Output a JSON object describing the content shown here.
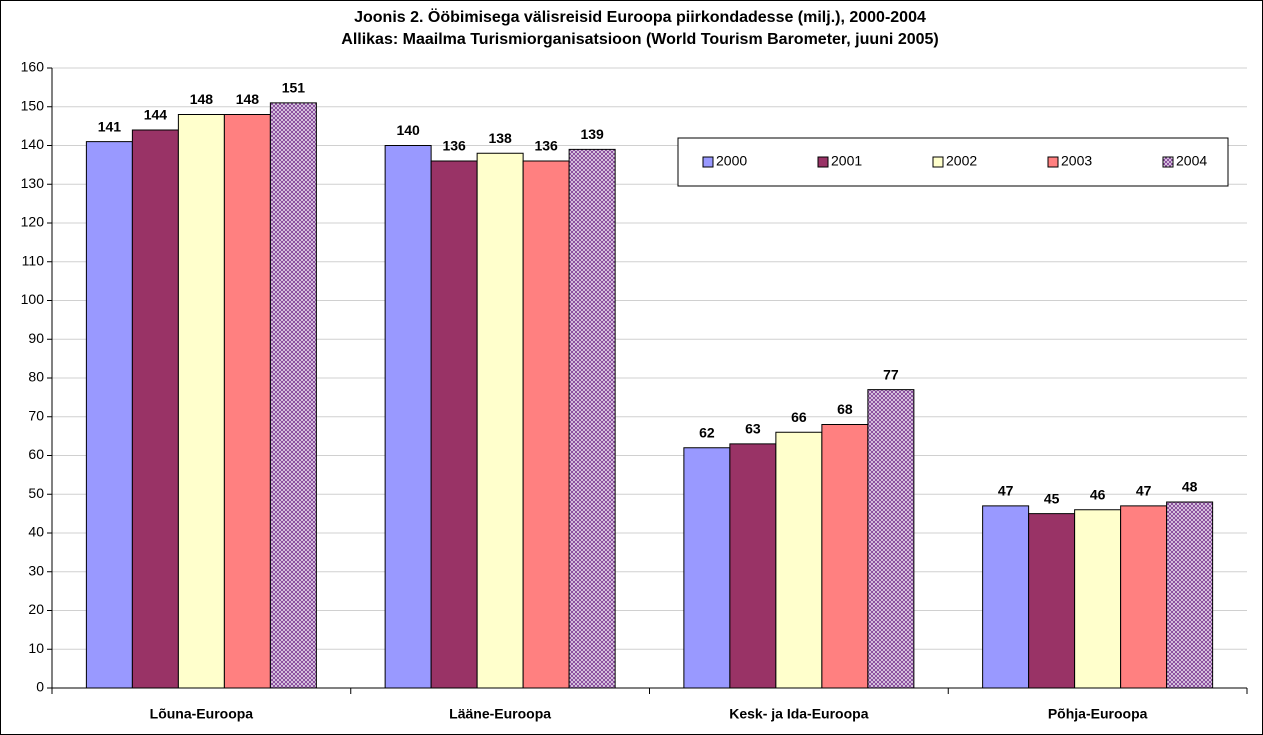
{
  "chart_data": {
    "type": "bar",
    "title": "Joonis 2. Ööbimisega välisreisid Euroopa piirkondadesse (milj.), 2000-2004",
    "subtitle": "Allikas: Maailma Turismiorganisatsioon (World Tourism Barometer, juuni 2005)",
    "categories": [
      "Lõuna-Euroopa",
      "Lääne-Euroopa",
      "Kesk- ja Ida-Euroopa",
      "Põhja-Euroopa"
    ],
    "series": [
      {
        "name": "2000",
        "color": "#9999ff",
        "values": [
          141,
          140,
          62,
          47
        ]
      },
      {
        "name": "2001",
        "color": "#993366",
        "values": [
          144,
          136,
          63,
          45
        ]
      },
      {
        "name": "2002",
        "color": "#ffffcc",
        "values": [
          148,
          138,
          66,
          46
        ]
      },
      {
        "name": "2003",
        "color": "#ff8080",
        "values": [
          148,
          136,
          68,
          47
        ]
      },
      {
        "name": "2004",
        "color": "#8a4f9e",
        "hatch": true,
        "values": [
          151,
          139,
          77,
          48
        ]
      }
    ],
    "ylim": [
      0,
      160
    ],
    "yticks": [
      0,
      10,
      20,
      30,
      40,
      50,
      60,
      70,
      80,
      90,
      100,
      110,
      120,
      130,
      140,
      150,
      160
    ],
    "grid": true,
    "legend": "top-right"
  }
}
